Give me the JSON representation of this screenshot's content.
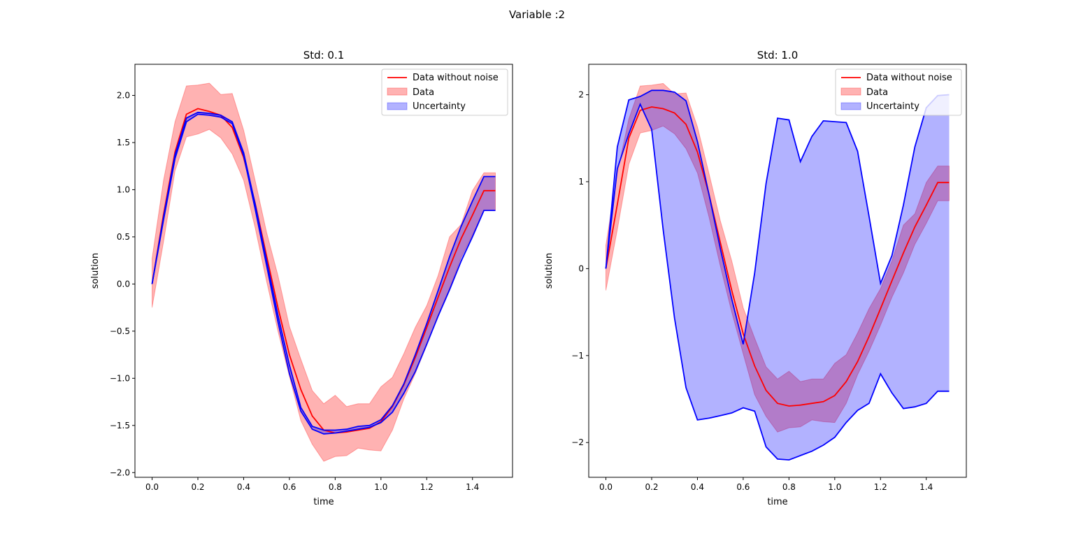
{
  "figure": {
    "suptitle": "Variable :2"
  },
  "colors": {
    "noise_free": "#ff0000",
    "data_fill": "#ff0000",
    "uncertainty_fill": "#0000ff",
    "uncertainty_line": "#0000ff"
  },
  "chart_data": [
    {
      "type": "line",
      "title": "Std: 0.1",
      "xlabel": "time",
      "ylabel": "solution",
      "xlim": [
        -0.075,
        1.575
      ],
      "ylim": [
        -2.05,
        2.33
      ],
      "xticks": [
        0.0,
        0.2,
        0.4,
        0.6,
        0.8,
        1.0,
        1.2,
        1.4
      ],
      "xtick_labels": [
        "0.0",
        "0.2",
        "0.4",
        "0.6",
        "0.8",
        "1.0",
        "1.2",
        "1.4"
      ],
      "yticks": [
        -2.0,
        -1.5,
        -1.0,
        -0.5,
        0.0,
        0.5,
        1.0,
        1.5,
        2.0
      ],
      "ytick_labels": [
        "−2.0",
        "−1.5",
        "−1.0",
        "−0.5",
        "0.0",
        "0.5",
        "1.0",
        "1.5",
        "2.0"
      ],
      "legend": {
        "placement": "upper-right",
        "entries": [
          "Data without noise",
          "Data",
          "Uncertainty"
        ]
      },
      "x": [
        0.0,
        0.05,
        0.1,
        0.15,
        0.2,
        0.25,
        0.3,
        0.35,
        0.4,
        0.45,
        0.5,
        0.55,
        0.6,
        0.65,
        0.7,
        0.75,
        0.8,
        0.85,
        0.9,
        0.95,
        1.0,
        1.05,
        1.1,
        1.15,
        1.2,
        1.25,
        1.3,
        1.35,
        1.4,
        1.45,
        1.5
      ],
      "series": [
        {
          "name": "Data without noise",
          "kind": "line",
          "values": [
            0.0,
            0.74,
            1.4,
            1.8,
            1.86,
            1.83,
            1.79,
            1.66,
            1.34,
            0.86,
            0.3,
            -0.25,
            -0.75,
            -1.12,
            -1.4,
            -1.55,
            -1.58,
            -1.57,
            -1.55,
            -1.53,
            -1.46,
            -1.3,
            -1.07,
            -0.78,
            -0.46,
            -0.14,
            0.18,
            0.48,
            0.73,
            0.99,
            0.99
          ]
        },
        {
          "name": "Data",
          "kind": "band",
          "upper": [
            0.27,
            1.1,
            1.72,
            2.1,
            2.11,
            2.13,
            2.01,
            2.02,
            1.63,
            1.1,
            0.55,
            0.09,
            -0.45,
            -0.8,
            -1.13,
            -1.27,
            -1.18,
            -1.3,
            -1.27,
            -1.27,
            -1.09,
            -0.99,
            -0.74,
            -0.46,
            -0.23,
            0.09,
            0.5,
            0.63,
            0.99,
            1.18,
            1.18
          ],
          "lower": [
            -0.25,
            0.45,
            1.2,
            1.56,
            1.59,
            1.64,
            1.55,
            1.38,
            1.1,
            0.6,
            0.03,
            -0.5,
            -0.98,
            -1.45,
            -1.7,
            -1.88,
            -1.83,
            -1.82,
            -1.74,
            -1.76,
            -1.77,
            -1.55,
            -1.22,
            -0.95,
            -0.65,
            -0.33,
            -0.05,
            0.28,
            0.52,
            0.78,
            0.78
          ]
        },
        {
          "name": "Uncertainty",
          "kind": "band",
          "upper": [
            0.0,
            0.71,
            1.37,
            1.76,
            1.82,
            1.81,
            1.79,
            1.72,
            1.39,
            0.85,
            0.25,
            -0.33,
            -0.86,
            -1.31,
            -1.51,
            -1.55,
            -1.55,
            -1.54,
            -1.51,
            -1.5,
            -1.44,
            -1.29,
            -1.06,
            -0.75,
            -0.42,
            -0.07,
            0.29,
            0.61,
            0.88,
            1.14,
            1.14
          ],
          "lower": [
            0.0,
            0.68,
            1.33,
            1.72,
            1.8,
            1.79,
            1.77,
            1.7,
            1.36,
            0.8,
            0.2,
            -0.4,
            -0.95,
            -1.35,
            -1.54,
            -1.59,
            -1.58,
            -1.56,
            -1.54,
            -1.52,
            -1.47,
            -1.36,
            -1.16,
            -0.93,
            -0.64,
            -0.34,
            -0.06,
            0.24,
            0.5,
            0.78,
            0.78
          ]
        }
      ]
    },
    {
      "type": "line",
      "title": "Std: 1.0",
      "xlabel": "time",
      "ylabel": "solution",
      "xlim": [
        -0.075,
        1.575
      ],
      "ylim": [
        -2.4,
        2.35
      ],
      "xticks": [
        0.0,
        0.2,
        0.4,
        0.6,
        0.8,
        1.0,
        1.2,
        1.4
      ],
      "xtick_labels": [
        "0.0",
        "0.2",
        "0.4",
        "0.6",
        "0.8",
        "1.0",
        "1.2",
        "1.4"
      ],
      "yticks": [
        -2,
        -1,
        0,
        1,
        2
      ],
      "ytick_labels": [
        "−2",
        "−1",
        "0",
        "1",
        "2"
      ],
      "legend": {
        "placement": "upper-right",
        "entries": [
          "Data without noise",
          "Data",
          "Uncertainty"
        ]
      },
      "x": [
        0.0,
        0.05,
        0.1,
        0.15,
        0.2,
        0.25,
        0.3,
        0.35,
        0.4,
        0.45,
        0.5,
        0.55,
        0.6,
        0.65,
        0.7,
        0.75,
        0.8,
        0.85,
        0.9,
        0.95,
        1.0,
        1.05,
        1.1,
        1.15,
        1.2,
        1.25,
        1.3,
        1.35,
        1.4,
        1.45,
        1.5
      ],
      "series": [
        {
          "name": "Data without noise",
          "kind": "line",
          "values": [
            0.0,
            0.74,
            1.5,
            1.82,
            1.86,
            1.84,
            1.79,
            1.66,
            1.34,
            0.86,
            0.3,
            -0.25,
            -0.75,
            -1.12,
            -1.4,
            -1.55,
            -1.58,
            -1.57,
            -1.55,
            -1.53,
            -1.46,
            -1.3,
            -1.07,
            -0.78,
            -0.46,
            -0.14,
            0.18,
            0.48,
            0.73,
            0.99,
            0.99
          ]
        },
        {
          "name": "Data",
          "kind": "band",
          "upper": [
            0.27,
            1.1,
            1.72,
            2.1,
            2.11,
            2.13,
            2.01,
            2.02,
            1.63,
            1.1,
            0.55,
            0.09,
            -0.45,
            -0.8,
            -1.13,
            -1.27,
            -1.18,
            -1.3,
            -1.27,
            -1.27,
            -1.09,
            -0.99,
            -0.74,
            -0.46,
            -0.23,
            0.09,
            0.5,
            0.63,
            0.99,
            1.18,
            1.18
          ],
          "lower": [
            -0.25,
            0.45,
            1.2,
            1.56,
            1.59,
            1.64,
            1.55,
            1.38,
            1.1,
            0.6,
            0.03,
            -0.5,
            -0.98,
            -1.45,
            -1.7,
            -1.88,
            -1.83,
            -1.82,
            -1.74,
            -1.76,
            -1.77,
            -1.55,
            -1.22,
            -0.95,
            -0.65,
            -0.33,
            -0.05,
            0.28,
            0.52,
            0.78,
            0.78
          ]
        },
        {
          "name": "Uncertainty",
          "kind": "band",
          "upper": [
            0.0,
            1.4,
            1.94,
            1.98,
            2.05,
            2.05,
            2.03,
            1.93,
            1.46,
            0.86,
            0.23,
            -0.35,
            -0.87,
            -0.05,
            0.98,
            1.73,
            1.71,
            1.23,
            1.52,
            1.7,
            1.69,
            1.68,
            1.35,
            0.6,
            -0.17,
            0.15,
            0.73,
            1.4,
            1.85,
            1.99,
            2.0
          ],
          "lower": [
            0.0,
            1.15,
            1.55,
            1.89,
            1.6,
            0.45,
            -0.57,
            -1.37,
            -1.74,
            -1.72,
            -1.69,
            -1.66,
            -1.6,
            -1.64,
            -2.05,
            -2.19,
            -2.2,
            -2.15,
            -2.1,
            -2.03,
            -1.94,
            -1.77,
            -1.63,
            -1.55,
            -1.21,
            -1.43,
            -1.61,
            -1.59,
            -1.55,
            -1.41,
            -1.41
          ]
        }
      ]
    }
  ]
}
